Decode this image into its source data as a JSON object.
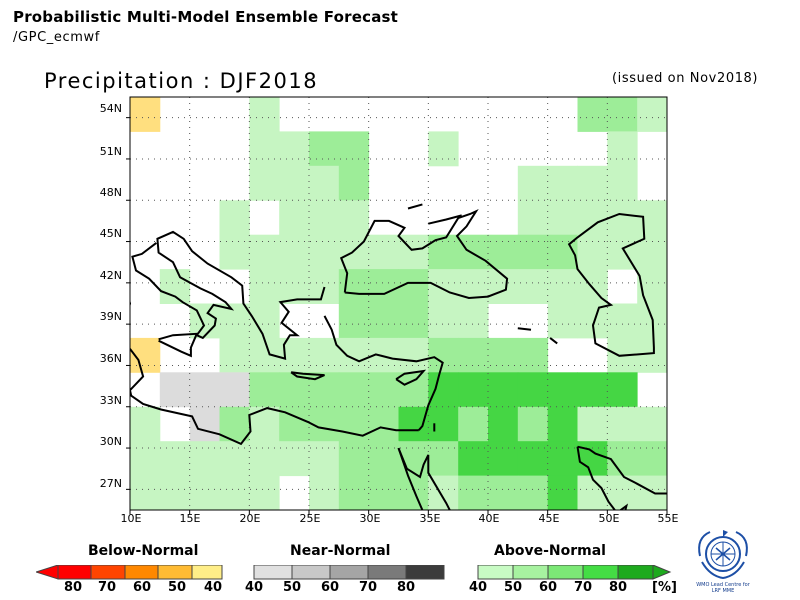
{
  "header": {
    "title": "Probabilistic Multi-Model Ensemble Forecast",
    "subtitle": "/GPC_ecmwf"
  },
  "map": {
    "title": "Precipitation : DJF2018",
    "issued": "(issued on Nov2018)",
    "lat_labels": [
      "54N",
      "51N",
      "48N",
      "45N",
      "42N",
      "39N",
      "36N",
      "33N",
      "30N",
      "27N"
    ],
    "lon_labels": [
      "10E",
      "15E",
      "20E",
      "25E",
      "30E",
      "35E",
      "40E",
      "45E",
      "50E",
      "55E"
    ],
    "lon_range": [
      10,
      55
    ],
    "lat_range": [
      25.5,
      55.5
    ],
    "grid_resolution_deg": 2.5,
    "colors": {
      "above_40": "#c6f5c2",
      "above_50": "#9ded98",
      "above_70": "#45d644",
      "near_40": "#dcdcdc",
      "near_50": "#c2c2c2",
      "near_70": "#555555",
      "below_40": "#ffdf7f",
      "coast": "#000000",
      "frame": "#000000"
    }
  },
  "legend": {
    "below": {
      "title": "Below-Normal",
      "ticks": [
        "80",
        "70",
        "60",
        "50",
        "40"
      ],
      "colors": [
        "#ff0000",
        "#ff4400",
        "#ff8800",
        "#ffbb33",
        "#ffee88"
      ]
    },
    "near": {
      "title": "Near-Normal",
      "ticks": [
        "40",
        "50",
        "60",
        "70",
        "80"
      ],
      "colors": [
        "#e0e0e0",
        "#c8c8c8",
        "#a5a5a5",
        "#7a7a7a",
        "#3c3c3c"
      ]
    },
    "above": {
      "title": "Above-Normal",
      "ticks": [
        "40",
        "50",
        "60",
        "70",
        "80"
      ],
      "colors": [
        "#c8fbc4",
        "#a7f2a0",
        "#7ce876",
        "#44dd44",
        "#1eaa1e"
      ],
      "unit": "[%]"
    }
  },
  "logo": {
    "icon": "wmo-emblem-icon",
    "text_line1": "WMO Lead Centre for",
    "text_line2": "LRF MME"
  }
}
